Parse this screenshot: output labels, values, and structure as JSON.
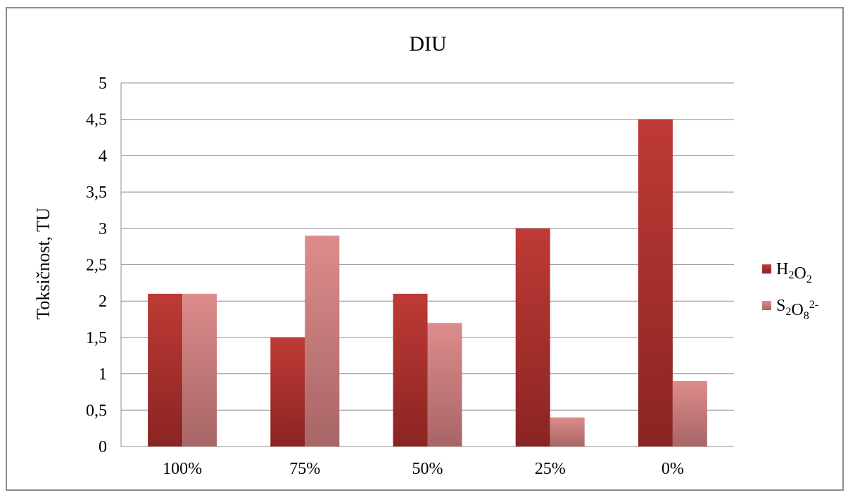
{
  "chart_data": {
    "type": "bar",
    "title": "DIU",
    "xlabel": "",
    "ylabel": "Toksičnost, TU",
    "ylim": [
      0,
      5
    ],
    "yticks": [
      "0",
      "0,5",
      "1",
      "1,5",
      "2",
      "2,5",
      "3",
      "3,5",
      "4",
      "4,5",
      "5"
    ],
    "categories": [
      "100%",
      "75%",
      "50%",
      "25%",
      "0%"
    ],
    "grid": true,
    "legend_position": "right",
    "series": [
      {
        "name": "H2O2",
        "label_parts": [
          {
            "t": "H",
            "s": ""
          },
          {
            "t": "2",
            "s": "sub"
          },
          {
            "t": "O",
            "s": ""
          },
          {
            "t": "2",
            "s": "sub"
          }
        ],
        "values": [
          2.1,
          1.5,
          2.1,
          3.0,
          4.5
        ],
        "color_top": "#be3a36",
        "color_bottom": "#8a2422"
      },
      {
        "name": "S2O8 2-",
        "label_parts": [
          {
            "t": "S",
            "s": ""
          },
          {
            "t": "2",
            "s": "sub"
          },
          {
            "t": "O",
            "s": ""
          },
          {
            "t": "8",
            "s": "sub"
          },
          {
            "t": "2-",
            "s": "sup"
          }
        ],
        "values": [
          2.1,
          2.9,
          1.7,
          0.4,
          0.9
        ],
        "color_top": "#dd8c8b",
        "color_bottom": "#a86566"
      }
    ]
  }
}
